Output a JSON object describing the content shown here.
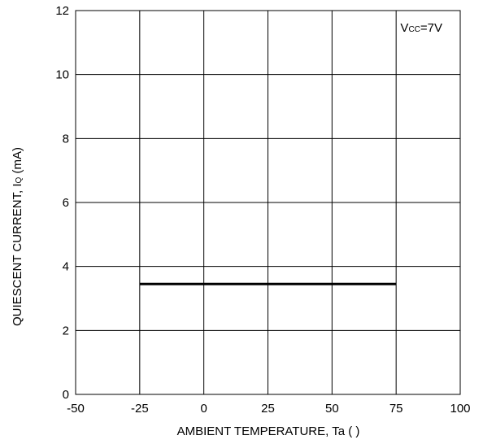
{
  "chart_data": {
    "type": "line",
    "xlabel": "AMBIENT TEMPERATURE, Ta (   )",
    "ylabel_main": "QUIESCENT CURRENT, I",
    "ylabel_sub": "Q",
    "ylabel_unit": " (mA)",
    "annotation_main": "V",
    "annotation_sub": "CC",
    "annotation_rest": "=7V",
    "xlim": [
      -50,
      100
    ],
    "ylim": [
      0,
      12
    ],
    "xticks": [
      -50,
      -25,
      0,
      25,
      50,
      75,
      100
    ],
    "yticks": [
      0,
      2,
      4,
      6,
      8,
      10,
      12
    ],
    "xtick_labels": [
      "-50",
      "-25",
      "0",
      "25",
      "50",
      "75",
      "100"
    ],
    "ytick_labels": [
      "0",
      "2",
      "4",
      "6",
      "8",
      "10",
      "12"
    ],
    "grid": true,
    "series": [
      {
        "x": [
          -25,
          75
        ],
        "y": [
          3.45,
          3.45
        ]
      }
    ]
  }
}
